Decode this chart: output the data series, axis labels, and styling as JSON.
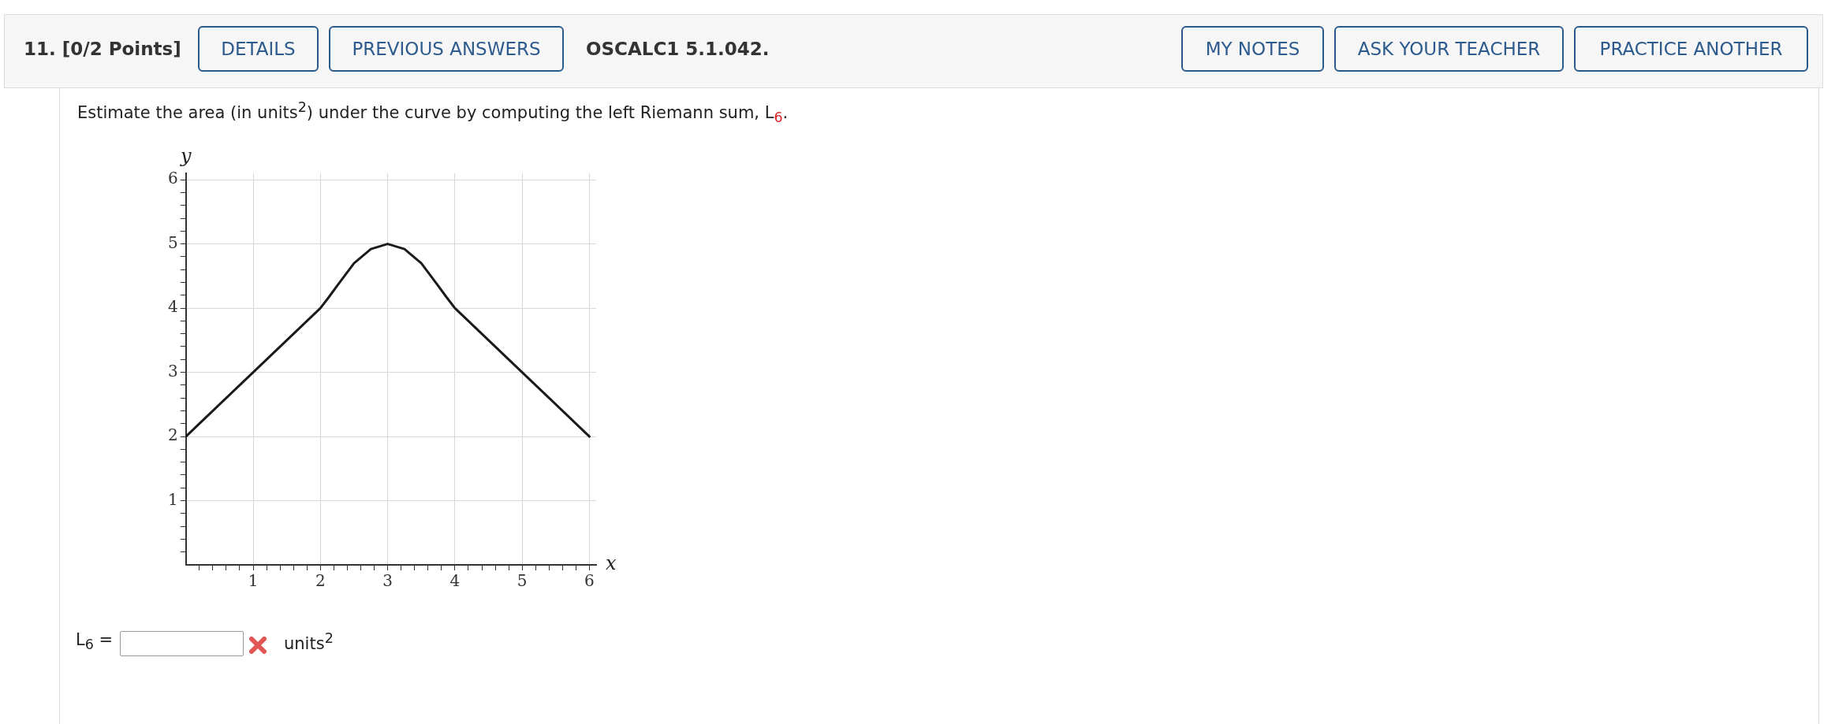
{
  "chart_data": {
    "type": "line",
    "title": "Estimate the area (in units$^{2}$) under the curve by computing the left Riemann sum, L$_{6}$.",
    "xlabel": "x",
    "ylabel": "y",
    "annotations": [
      "11. [0/2 Points]",
      "DETAILS",
      "PREVIOUS ANSWERS",
      "OSCALC1 5.1.042.",
      "MY NOTES",
      "ASK YOUR TEACHER",
      "PRACTICE ANOTHER",
      "L$_{6}$ =",
      "units$^{2}$"
    ],
    "series": [
      {
        "color": "#1a1a1a",
        "x": [
          0,
          1,
          2,
          2.125,
          2.25,
          2.5,
          2.75,
          3,
          3.25,
          3.5,
          3.75,
          3.875,
          4,
          5,
          6
        ],
        "values": [
          2,
          3,
          4,
          4.17,
          4.35,
          4.7,
          4.92,
          5,
          4.92,
          4.7,
          4.35,
          4.17,
          4,
          3,
          2
        ]
      }
    ],
    "xlim": [
      0,
      6.1
    ],
    "ylim": [
      0,
      6.1
    ],
    "xticks": [
      {
        "value": 0.2,
        "label": null
      },
      {
        "value": 0.4,
        "label": null
      },
      {
        "value": 0.6,
        "label": null
      },
      {
        "value": 0.8,
        "label": null
      },
      1,
      {
        "value": 1.2,
        "label": null
      },
      {
        "value": 1.4,
        "label": null
      },
      {
        "value": 1.6,
        "label": null
      },
      {
        "value": 1.8,
        "label": null
      },
      2,
      {
        "value": 2.2,
        "label": null
      },
      {
        "value": 2.4,
        "label": null
      },
      {
        "value": 2.6,
        "label": null
      },
      {
        "value": 2.8,
        "label": null
      },
      3,
      {
        "value": 3.2,
        "label": null
      },
      {
        "value": 3.4,
        "label": null
      },
      {
        "value": 3.6,
        "label": null
      },
      {
        "value": 3.8,
        "label": null
      },
      4,
      {
        "value": 4.2,
        "label": null
      },
      {
        "value": 4.4,
        "label": null
      },
      {
        "value": 4.6,
        "label": null
      },
      {
        "value": 4.8,
        "label": null
      },
      5,
      {
        "value": 5.2,
        "label": null
      },
      {
        "value": 5.4,
        "label": null
      },
      {
        "value": 5.6,
        "label": null
      },
      {
        "value": 5.8,
        "label": null
      },
      6
    ],
    "yticks": [
      {
        "value": 0.2,
        "label": null
      },
      {
        "value": 0.4,
        "label": null
      },
      {
        "value": 0.6,
        "label": null
      },
      {
        "value": 0.8,
        "label": null
      },
      1,
      {
        "value": 1.2,
        "label": null
      },
      {
        "value": 1.4,
        "label": null
      },
      {
        "value": 1.6,
        "label": null
      },
      {
        "value": 1.8,
        "label": null
      },
      2,
      {
        "value": 2.2,
        "label": null
      },
      {
        "value": 2.4,
        "label": null
      },
      {
        "value": 2.6,
        "label": null
      },
      {
        "value": 2.8,
        "label": null
      },
      3,
      {
        "value": 3.2,
        "label": null
      },
      {
        "value": 3.4,
        "label": null
      },
      {
        "value": 3.6,
        "label": null
      },
      {
        "value": 3.8,
        "label": null
      },
      4,
      {
        "value": 4.2,
        "label": null
      },
      {
        "value": 4.4,
        "label": null
      },
      {
        "value": 4.6,
        "label": null
      },
      {
        "value": 4.8,
        "label": null
      },
      5,
      {
        "value": 5.2,
        "label": null
      },
      {
        "value": 5.4,
        "label": null
      },
      {
        "value": 5.6,
        "label": null
      },
      {
        "value": 5.8,
        "label": null
      },
      6
    ],
    "grid": true,
    "marker": "none",
    "line_style": "solid"
  }
}
